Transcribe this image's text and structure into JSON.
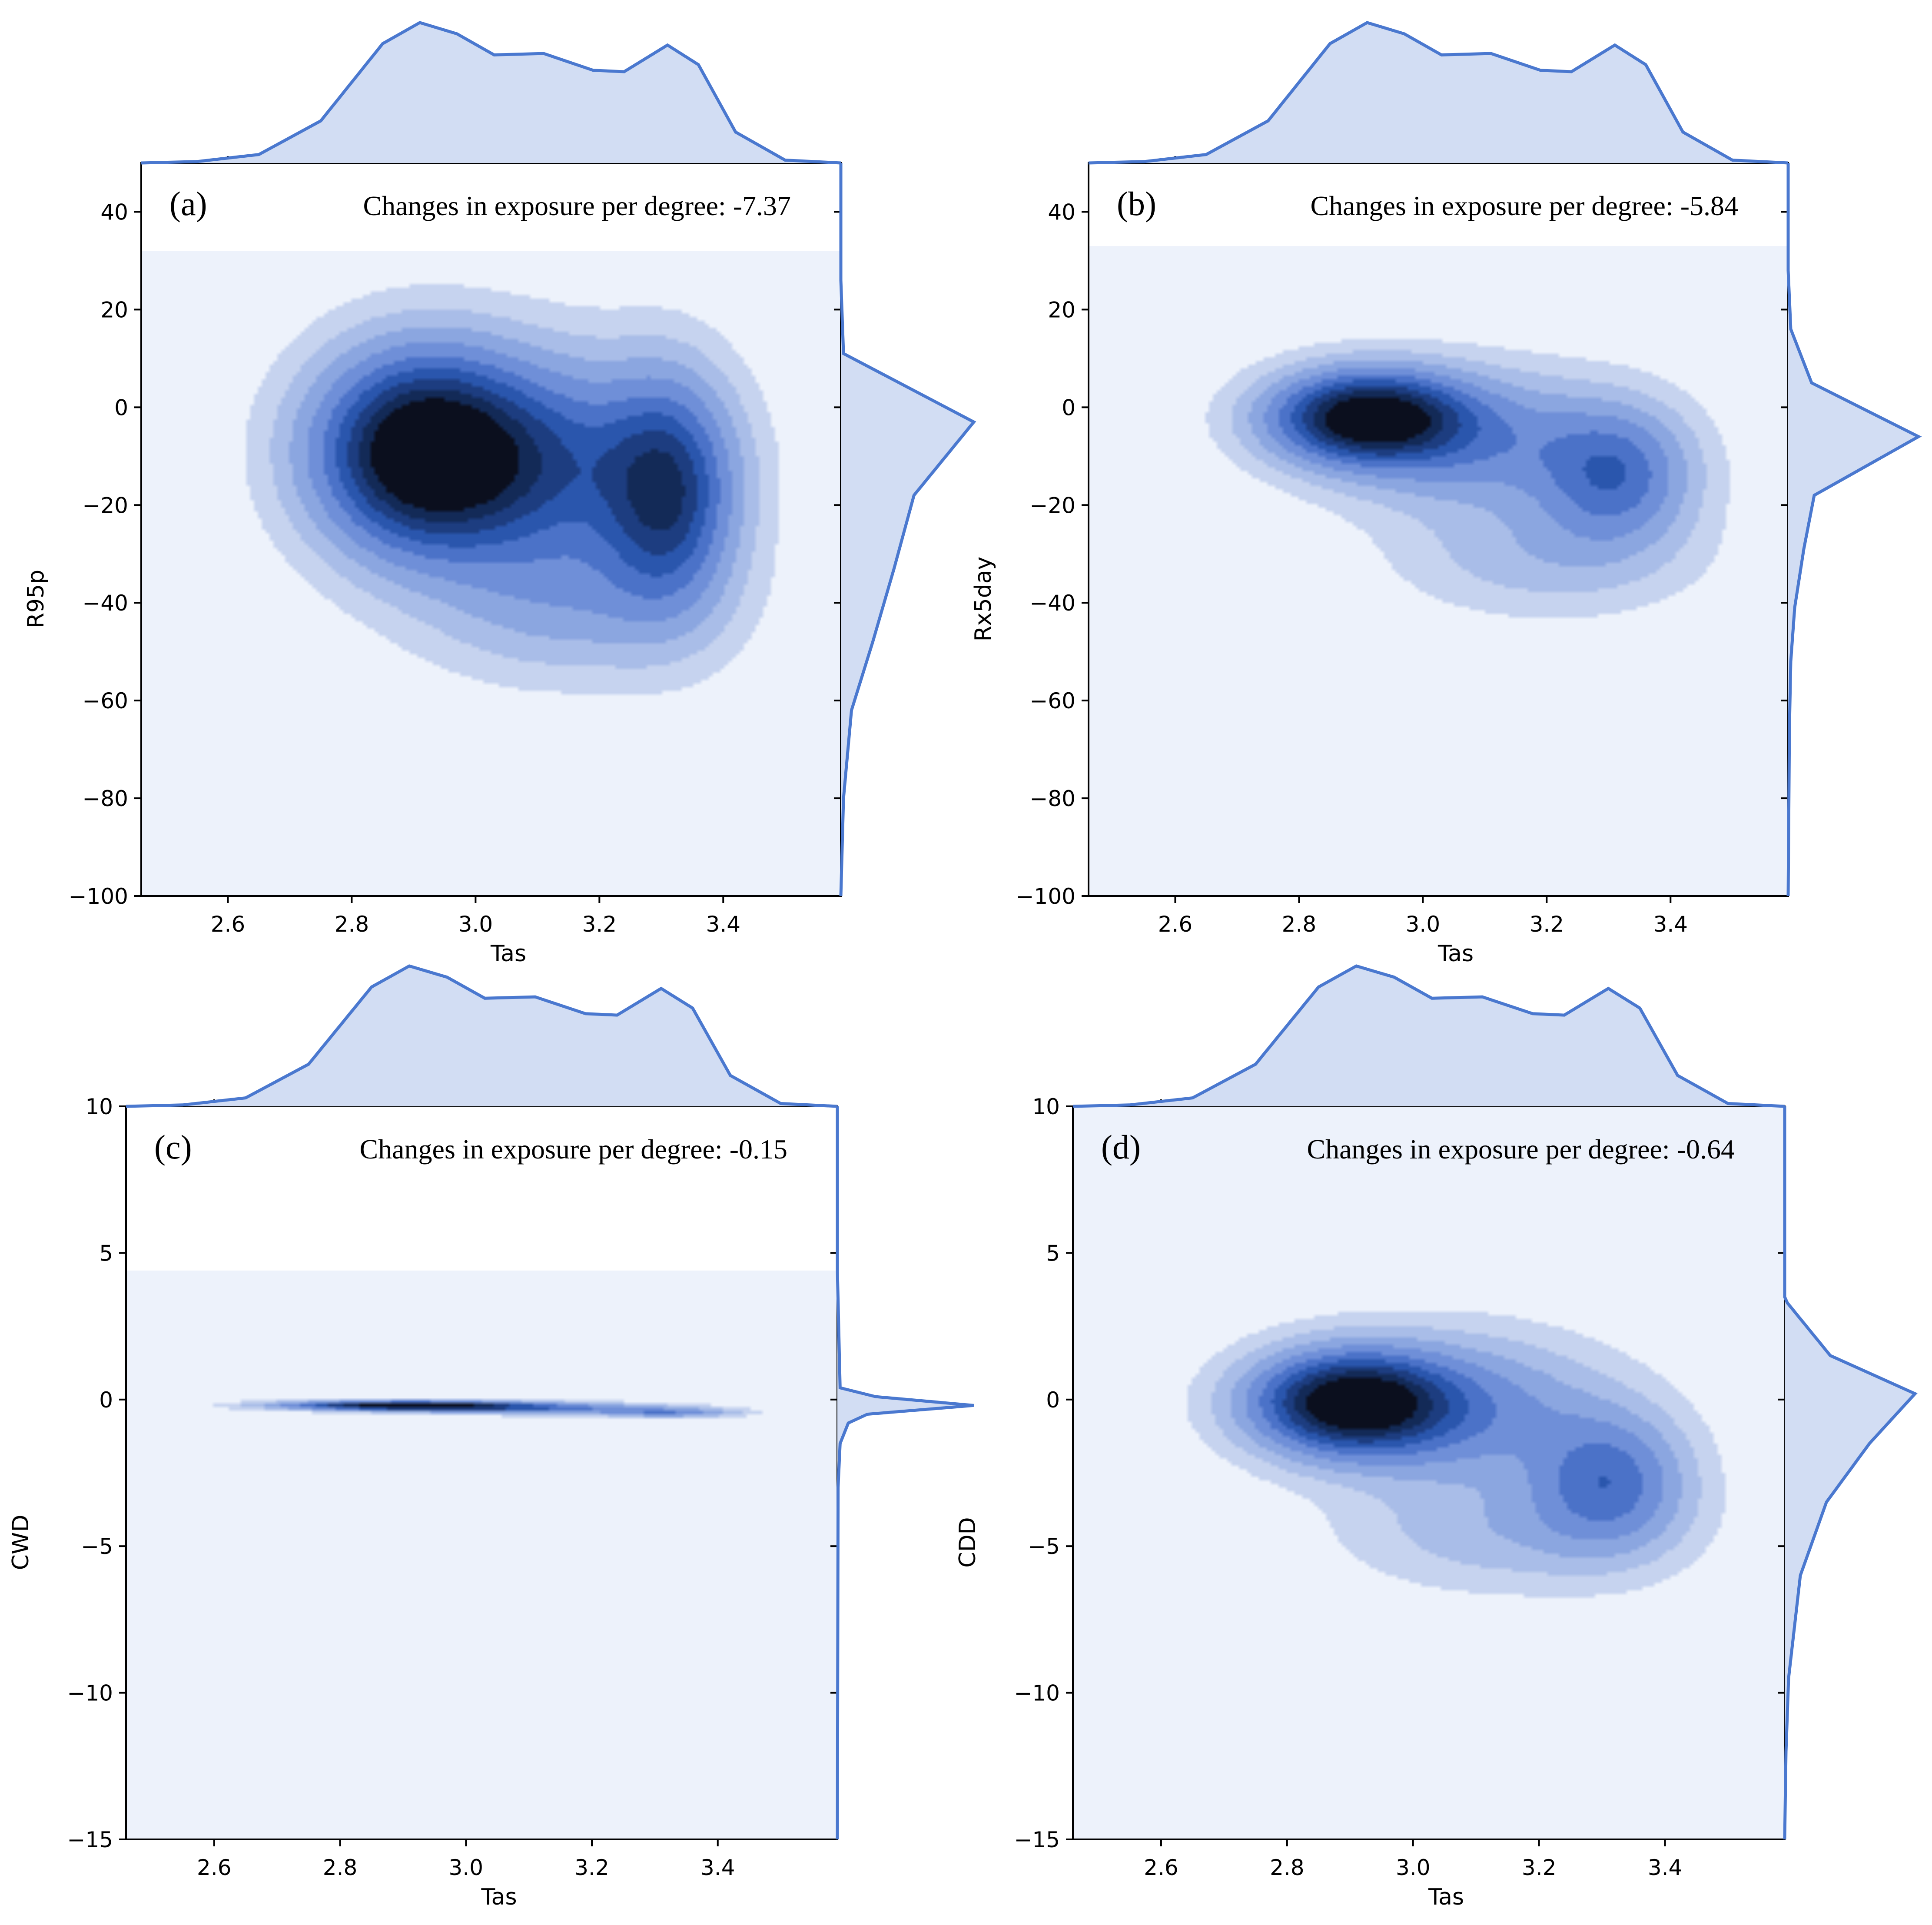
{
  "chart_data": [
    {
      "type": "kde",
      "panel_label": "(a)",
      "annotation": "Changes in exposure per degree: -7.37",
      "xlabel": "Tas",
      "ylabel": "R95p",
      "xlim": [
        2.46,
        3.59
      ],
      "ylim": [
        -100,
        50
      ],
      "xticks": [
        2.6,
        2.8,
        3.0,
        3.2,
        3.4
      ],
      "yticks": [
        -100,
        -80,
        -60,
        -40,
        -20,
        0,
        20,
        40
      ],
      "shade_top": 32,
      "colors": {
        "fill": "#d2ddf3",
        "line": "#4a78cf",
        "dark": "#0b0f1e"
      },
      "clusters": [
        {
          "x": 2.91,
          "y": -9,
          "sx": 0.11,
          "sy": 13,
          "w": 1.0
        },
        {
          "x": 3.1,
          "y": -12,
          "sx": 0.15,
          "sy": 14,
          "w": 0.55
        },
        {
          "x": 3.31,
          "y": -18,
          "sx": 0.07,
          "sy": 15,
          "w": 0.65
        },
        {
          "x": 3.15,
          "y": -40,
          "sx": 0.15,
          "sy": 10,
          "w": 0.2
        }
      ],
      "marginal_x": [
        [
          2.46,
          0
        ],
        [
          2.55,
          0.01
        ],
        [
          2.65,
          0.06
        ],
        [
          2.75,
          0.3
        ],
        [
          2.85,
          0.85
        ],
        [
          2.91,
          1.0
        ],
        [
          2.97,
          0.92
        ],
        [
          3.03,
          0.77
        ],
        [
          3.11,
          0.78
        ],
        [
          3.19,
          0.66
        ],
        [
          3.24,
          0.65
        ],
        [
          3.31,
          0.84
        ],
        [
          3.36,
          0.7
        ],
        [
          3.42,
          0.22
        ],
        [
          3.5,
          0.02
        ],
        [
          3.59,
          0
        ]
      ],
      "marginal_y": [
        [
          50,
          0
        ],
        [
          26,
          0
        ],
        [
          11,
          0.02
        ],
        [
          -3,
          1.0
        ],
        [
          -18,
          0.55
        ],
        [
          -33,
          0.4
        ],
        [
          -48,
          0.24
        ],
        [
          -62,
          0.08
        ],
        [
          -80,
          0.02
        ],
        [
          -100,
          0
        ]
      ]
    },
    {
      "type": "kde",
      "panel_label": "(b)",
      "annotation": "Changes in exposure per degree: -5.84",
      "xlabel": "Tas",
      "ylabel": "Rx5day",
      "xlim": [
        2.46,
        3.59
      ],
      "ylim": [
        -100,
        50
      ],
      "xticks": [
        2.6,
        2.8,
        3.0,
        3.2,
        3.4
      ],
      "yticks": [
        -100,
        -80,
        -60,
        -40,
        -20,
        0,
        20,
        40
      ],
      "shade_top": 33,
      "colors": {
        "fill": "#d2ddf3",
        "line": "#4a78cf",
        "dark": "#0b0f1e"
      },
      "clusters": [
        {
          "x": 2.91,
          "y": -2,
          "sx": 0.1,
          "sy": 6,
          "w": 1.0
        },
        {
          "x": 3.08,
          "y": -7,
          "sx": 0.15,
          "sy": 9,
          "w": 0.35
        },
        {
          "x": 3.31,
          "y": -14,
          "sx": 0.08,
          "sy": 9,
          "w": 0.45
        },
        {
          "x": 3.2,
          "y": -30,
          "sx": 0.15,
          "sy": 8,
          "w": 0.15
        }
      ],
      "marginal_x": [
        [
          2.46,
          0
        ],
        [
          2.55,
          0.01
        ],
        [
          2.65,
          0.06
        ],
        [
          2.75,
          0.3
        ],
        [
          2.85,
          0.85
        ],
        [
          2.91,
          1.0
        ],
        [
          2.97,
          0.92
        ],
        [
          3.03,
          0.77
        ],
        [
          3.11,
          0.78
        ],
        [
          3.19,
          0.66
        ],
        [
          3.24,
          0.65
        ],
        [
          3.31,
          0.84
        ],
        [
          3.36,
          0.7
        ],
        [
          3.42,
          0.22
        ],
        [
          3.5,
          0.02
        ],
        [
          3.59,
          0
        ]
      ],
      "marginal_y": [
        [
          50,
          0
        ],
        [
          28,
          0
        ],
        [
          16,
          0.02
        ],
        [
          5,
          0.18
        ],
        [
          -6,
          1.0
        ],
        [
          -18,
          0.2
        ],
        [
          -29,
          0.12
        ],
        [
          -41,
          0.05
        ],
        [
          -52,
          0.02
        ],
        [
          -65,
          0.01
        ],
        [
          -100,
          0
        ]
      ]
    },
    {
      "type": "kde",
      "panel_label": "(c)",
      "annotation": "Changes in exposure per degree: -0.15",
      "xlabel": "Tas",
      "ylabel": "CWD",
      "xlim": [
        2.46,
        3.59
      ],
      "ylim": [
        -15,
        10
      ],
      "xticks": [
        2.6,
        2.8,
        3.0,
        3.2,
        3.4
      ],
      "yticks": [
        -15,
        -10,
        -5,
        0,
        5,
        10
      ],
      "shade_top": 4.4,
      "colors": {
        "fill": "#d2ddf3",
        "line": "#4a78cf",
        "dark": "#0b0f1e"
      },
      "clusters": [
        {
          "x": 2.9,
          "y": -0.2,
          "sx": 0.12,
          "sy": 0.1,
          "w": 1.0
        },
        {
          "x": 3.1,
          "y": -0.3,
          "sx": 0.14,
          "sy": 0.12,
          "w": 0.45
        },
        {
          "x": 3.32,
          "y": -0.45,
          "sx": 0.07,
          "sy": 0.1,
          "w": 0.35
        }
      ],
      "marginal_x": [
        [
          2.46,
          0
        ],
        [
          2.55,
          0.01
        ],
        [
          2.65,
          0.06
        ],
        [
          2.75,
          0.3
        ],
        [
          2.85,
          0.85
        ],
        [
          2.91,
          1.0
        ],
        [
          2.97,
          0.92
        ],
        [
          3.03,
          0.77
        ],
        [
          3.11,
          0.78
        ],
        [
          3.19,
          0.66
        ],
        [
          3.24,
          0.65
        ],
        [
          3.31,
          0.84
        ],
        [
          3.36,
          0.7
        ],
        [
          3.42,
          0.22
        ],
        [
          3.5,
          0.02
        ],
        [
          3.59,
          0
        ]
      ],
      "marginal_y": [
        [
          10,
          0
        ],
        [
          4.4,
          0
        ],
        [
          0.4,
          0.02
        ],
        [
          0.1,
          0.28
        ],
        [
          -0.2,
          1.0
        ],
        [
          -0.5,
          0.22
        ],
        [
          -0.8,
          0.08
        ],
        [
          -1.5,
          0.02
        ],
        [
          -3,
          0.005
        ],
        [
          -15,
          0
        ]
      ]
    },
    {
      "type": "kde",
      "panel_label": "(d)",
      "annotation": "Changes in exposure per degree: -0.64",
      "xlabel": "Tas",
      "ylabel": "CDD",
      "xlim": [
        2.46,
        3.59
      ],
      "ylim": [
        -15,
        10
      ],
      "xticks": [
        2.6,
        2.8,
        3.0,
        3.2,
        3.4
      ],
      "yticks": [
        -15,
        -10,
        -5,
        0,
        5,
        10
      ],
      "shade_top": 10,
      "colors": {
        "fill": "#d2ddf3",
        "line": "#4a78cf",
        "dark": "#0b0f1e"
      },
      "clusters": [
        {
          "x": 2.9,
          "y": -0.1,
          "sx": 0.1,
          "sy": 1.1,
          "w": 1.0
        },
        {
          "x": 3.07,
          "y": -0.4,
          "sx": 0.15,
          "sy": 1.6,
          "w": 0.35
        },
        {
          "x": 3.31,
          "y": -2.8,
          "sx": 0.08,
          "sy": 1.5,
          "w": 0.45
        },
        {
          "x": 3.15,
          "y": -4.5,
          "sx": 0.16,
          "sy": 1.3,
          "w": 0.15
        }
      ],
      "marginal_x": [
        [
          2.46,
          0
        ],
        [
          2.55,
          0.01
        ],
        [
          2.65,
          0.06
        ],
        [
          2.75,
          0.3
        ],
        [
          2.85,
          0.85
        ],
        [
          2.91,
          1.0
        ],
        [
          2.97,
          0.92
        ],
        [
          3.03,
          0.77
        ],
        [
          3.11,
          0.78
        ],
        [
          3.19,
          0.66
        ],
        [
          3.24,
          0.65
        ],
        [
          3.31,
          0.84
        ],
        [
          3.36,
          0.7
        ],
        [
          3.42,
          0.22
        ],
        [
          3.5,
          0.02
        ],
        [
          3.59,
          0
        ]
      ],
      "marginal_y": [
        [
          10,
          0
        ],
        [
          3.5,
          0
        ],
        [
          3.3,
          0.02
        ],
        [
          1.5,
          0.35
        ],
        [
          0.2,
          1.0
        ],
        [
          -1.5,
          0.65
        ],
        [
          -3.5,
          0.32
        ],
        [
          -6,
          0.12
        ],
        [
          -9.5,
          0.03
        ],
        [
          -12,
          0.01
        ],
        [
          -15,
          0
        ]
      ]
    }
  ]
}
